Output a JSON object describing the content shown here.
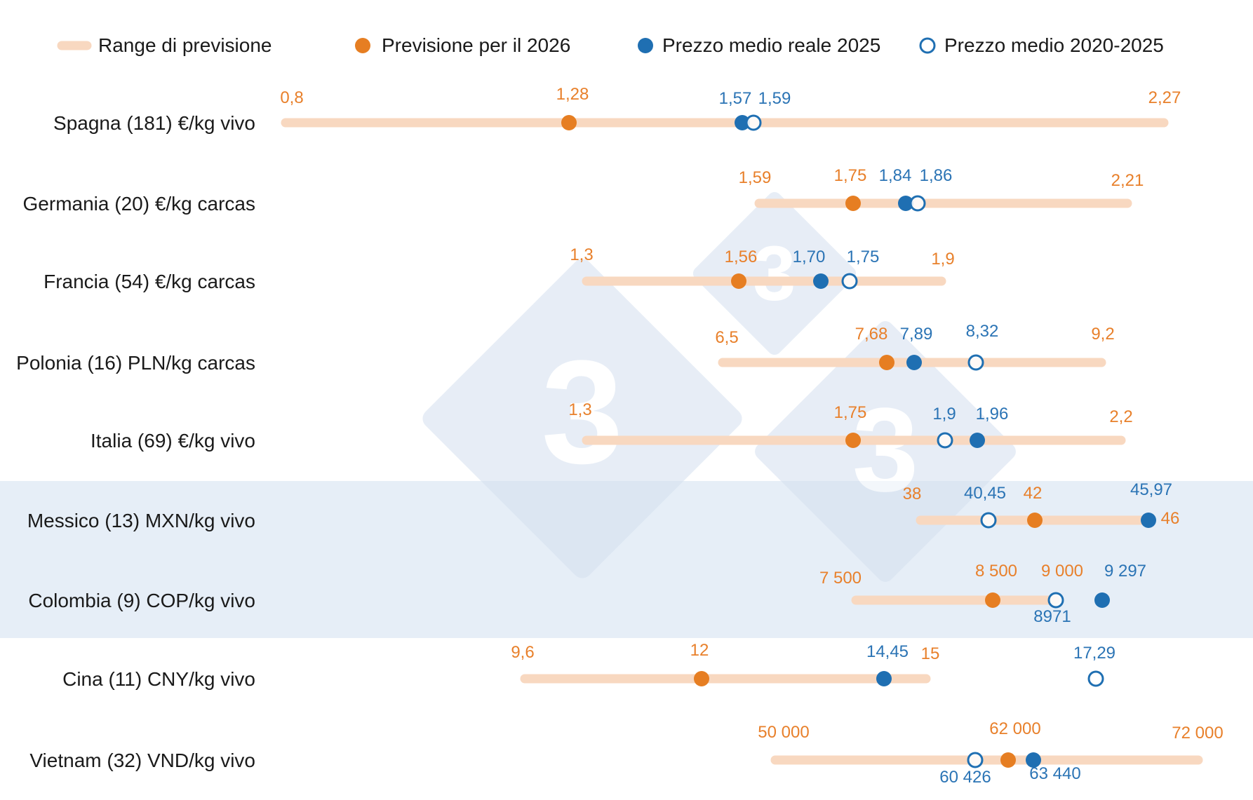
{
  "chart_data": {
    "type": "range-dot",
    "colors": {
      "range": "#f8d8c0",
      "forecast": "#e67e22",
      "actual": "#1f6fb2",
      "band": "#e6eef7",
      "orange_text": "#e8802b",
      "blue_text": "#2b74b5"
    },
    "legend": [
      {
        "key": "range",
        "label": "Range di previsione"
      },
      {
        "key": "forecast",
        "label": "Previsione per il 2026"
      },
      {
        "key": "actual",
        "label": "Prezzo medio reale 2025"
      },
      {
        "key": "avg",
        "label": "Prezzo medio 2020-2025"
      }
    ],
    "highlighted_rows": [
      5,
      6
    ],
    "rows": [
      {
        "label": "Spagna (181) €/kg vivo",
        "min": 0.8,
        "max": 2.27,
        "forecast": 1.28,
        "actual": 1.57,
        "avg": 1.59,
        "labels": {
          "min": "0,8",
          "max": "2,27",
          "forecast": "1,28",
          "actual": "1,57",
          "avg": "1,59"
        }
      },
      {
        "label": "Germania (20) €/kg carcas",
        "min": 1.59,
        "max": 2.21,
        "forecast": 1.75,
        "actual": 1.84,
        "avg": 1.86,
        "labels": {
          "min": "1,59",
          "max": "2,21",
          "forecast": "1,75",
          "actual": "1,84",
          "avg": "1,86"
        }
      },
      {
        "label": "Francia (54) €/kg carcas",
        "min": 1.3,
        "max": 1.9,
        "forecast": 1.56,
        "actual": 1.7,
        "avg": 1.75,
        "labels": {
          "min": "1,3",
          "max": "1,9",
          "forecast": "1,56",
          "actual": "1,70",
          "avg": "1,75"
        }
      },
      {
        "label": "Polonia (16) PLN/kg carcas",
        "min": 6.5,
        "max": 9.2,
        "forecast": 7.68,
        "actual": 7.89,
        "avg": 8.32,
        "labels": {
          "min": "6,5",
          "max": "9,2",
          "forecast": "7,68",
          "actual": "7,89",
          "avg": "8,32"
        }
      },
      {
        "label": "Italia (69) €/kg vivo",
        "min": 1.3,
        "max": 2.2,
        "forecast": 1.75,
        "actual": 1.96,
        "avg": 1.9,
        "labels": {
          "min": "1,3",
          "max": "2,2",
          "forecast": "1,75",
          "actual": "1,96",
          "avg": "1,9"
        }
      },
      {
        "label": "Messico (13) MXN/kg vivo",
        "min": 38,
        "max": 46,
        "forecast": 42,
        "actual": 45.97,
        "avg": 40.45,
        "labels": {
          "min": "38",
          "max": "46",
          "forecast": "42",
          "actual": "45,97",
          "avg": "40,45"
        }
      },
      {
        "label": "Colombia (9) COP/kg vivo",
        "min": 7500,
        "max": 9000,
        "forecast": 8500,
        "actual": 9297,
        "avg": 8971,
        "labels": {
          "min": "7 500",
          "max": "9 000",
          "forecast": "8 500",
          "actual": "9 297",
          "avg": "8971"
        }
      },
      {
        "label": "Cina (11) CNY/kg vivo",
        "min": 9.6,
        "max": 15,
        "forecast": 12,
        "actual": 14.45,
        "avg": 17.29,
        "labels": {
          "min": "9,6",
          "max": "15",
          "forecast": "12",
          "actual": "14,45",
          "avg": "17,29"
        }
      },
      {
        "label": "Vietnam (32) VND/kg vivo",
        "min": 50000,
        "max": 72000,
        "forecast": 62000,
        "actual": 63440,
        "avg": 60426,
        "labels": {
          "min": "50 000",
          "max": "72 000",
          "forecast": "62 000",
          "actual": "63 440",
          "avg": "60 426"
        }
      }
    ]
  }
}
